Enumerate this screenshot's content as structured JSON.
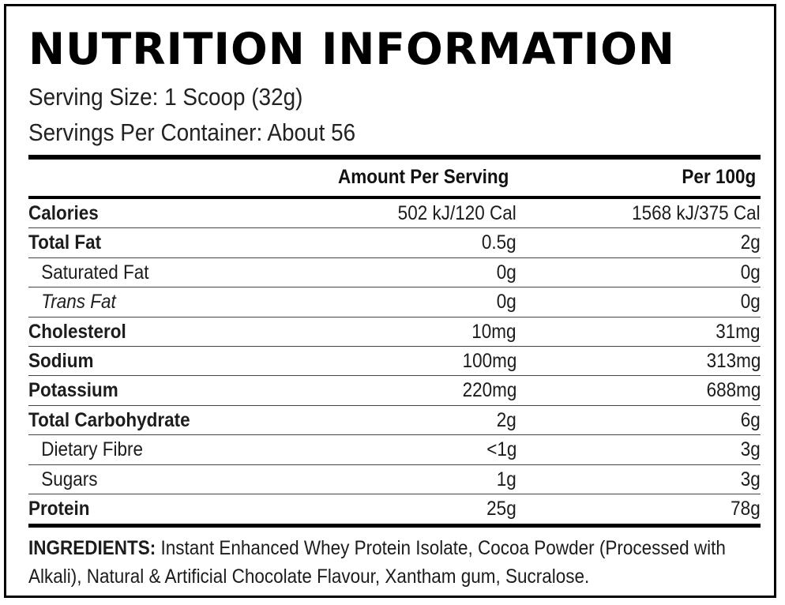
{
  "title": "NUTRITION INFORMATION",
  "serving_size": "Serving Size: 1 Scoop (32g)",
  "servings_per_container": "Servings Per Container: About 56",
  "columns": {
    "amount_per_serving": "Amount Per Serving",
    "per_100g": "Per 100g"
  },
  "rows": [
    {
      "name": "Calories",
      "per_serving": "502 kJ/120 Cal",
      "per_100g": "1568 kJ/375 Cal"
    },
    {
      "name": "Total Fat",
      "per_serving": "0.5g",
      "per_100g": "2g"
    },
    {
      "name": "Saturated Fat",
      "per_serving": "0g",
      "per_100g": "0g"
    },
    {
      "name": "Trans Fat",
      "per_serving": "0g",
      "per_100g": "0g"
    },
    {
      "name": "Cholesterol",
      "per_serving": "10mg",
      "per_100g": "31mg"
    },
    {
      "name": "Sodium",
      "per_serving": "100mg",
      "per_100g": "313mg"
    },
    {
      "name": "Potassium",
      "per_serving": "220mg",
      "per_100g": "688mg"
    },
    {
      "name": "Total Carbohydrate",
      "per_serving": "2g",
      "per_100g": "6g"
    },
    {
      "name": "Dietary Fibre",
      "per_serving": "<1g",
      "per_100g": "3g"
    },
    {
      "name": "Sugars",
      "per_serving": "1g",
      "per_100g": "3g"
    },
    {
      "name": "Protein",
      "per_serving": "25g",
      "per_100g": "78g"
    }
  ],
  "ingredients": {
    "label": "INGREDIENTS:",
    "text_line1": " Instant Enhanced Whey Protein Isolate, Cocoa Powder (Processed with",
    "text_line2": "Alkali), Natural & Artificial Chocolate Flavour, Xantham gum, Sucralose."
  }
}
